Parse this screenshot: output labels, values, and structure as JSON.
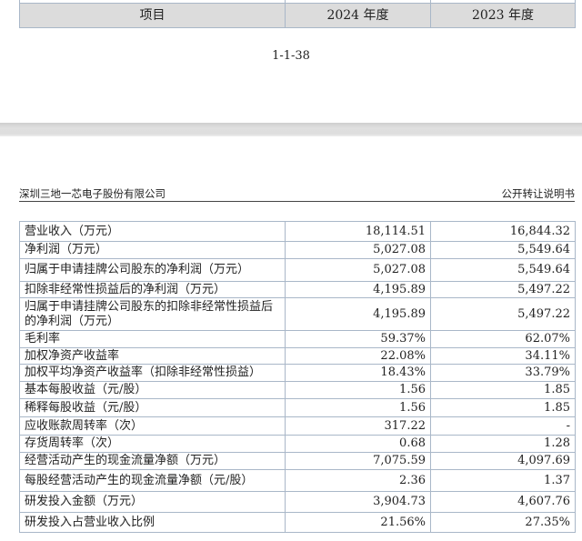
{
  "page1": {
    "header_row": {
      "item": "项目",
      "y2024": "2024 年度",
      "y2023": "2023 年度"
    },
    "page_number": "1-1-38"
  },
  "page2": {
    "company": "深圳三地一芯电子股份有限公司",
    "doc_type": "公开转让说明书",
    "rows": [
      {
        "item": "营业收入（万元）",
        "y2024": "18,114.51",
        "y2023": "16,844.32"
      },
      {
        "item": "净利润（万元）",
        "y2024": "5,027.08",
        "y2023": "5,549.64"
      },
      {
        "item": "归属于申请挂牌公司股东的净利润（万元）",
        "y2024": "5,027.08",
        "y2023": "5,549.64"
      },
      {
        "item": "扣除非经常性损益后的净利润（万元）",
        "y2024": "4,195.89",
        "y2023": "5,497.22"
      },
      {
        "item": "归属于申请挂牌公司股东的扣除非经常性损益后的净利润（万元）",
        "y2024": "4,195.89",
        "y2023": "5,497.22"
      },
      {
        "item": "毛利率",
        "y2024": "59.37%",
        "y2023": "62.07%"
      },
      {
        "item": "加权净资产收益率",
        "y2024": "22.08%",
        "y2023": "34.11%"
      },
      {
        "item": "加权平均净资产收益率（扣除非经常性损益）",
        "y2024": "18.43%",
        "y2023": "33.79%"
      },
      {
        "item": "基本每股收益（元/股）",
        "y2024": "1.56",
        "y2023": "1.85"
      },
      {
        "item": "稀释每股收益（元/股）",
        "y2024": "1.56",
        "y2023": "1.85"
      },
      {
        "item": "应收账款周转率（次）",
        "y2024": "317.22",
        "y2023": "-"
      },
      {
        "item": "存货周转率（次）",
        "y2024": "0.68",
        "y2023": "1.28"
      },
      {
        "item": "经营活动产生的现金流量净额（万元）",
        "y2024": "7,075.59",
        "y2023": "4,097.69"
      },
      {
        "item": "每股经营活动产生的现金流量净额（元/股）",
        "y2024": "2.36",
        "y2023": "1.37"
      },
      {
        "item": "研发投入金额（万元）",
        "y2024": "3,904.73",
        "y2023": "4,607.76"
      },
      {
        "item": "研发投入占营业收入比例",
        "y2024": "21.56%",
        "y2023": "27.35%"
      }
    ]
  }
}
